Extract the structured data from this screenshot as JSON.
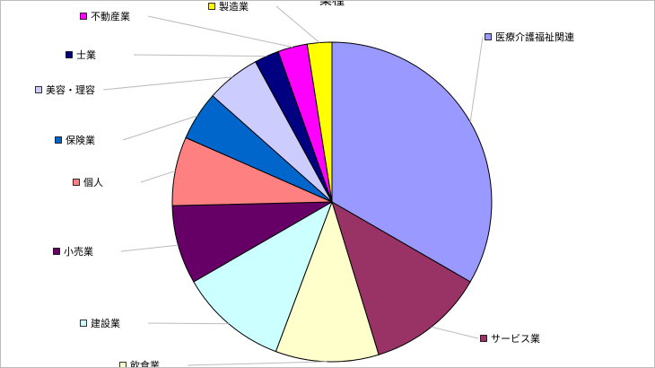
{
  "chart_data": {
    "type": "pie",
    "title": "業種",
    "categories": [
      "医療介護福祉関連",
      "サービス業",
      "飲食業",
      "建設業",
      "小売業",
      "個人",
      "保険業",
      "美容・理容",
      "士業",
      "不動産業",
      "製造業"
    ],
    "values": [
      33.5,
      12,
      10.5,
      11,
      8,
      7,
      5,
      5.5,
      2.5,
      3,
      2.5
    ],
    "colors": [
      "#9999ff",
      "#993366",
      "#ffffcc",
      "#ccffff",
      "#660066",
      "#ff8080",
      "#0066cc",
      "#ccccff",
      "#000080",
      "#ff00ff",
      "#ffff00"
    ],
    "legend": "leader-lines",
    "grid": false
  }
}
